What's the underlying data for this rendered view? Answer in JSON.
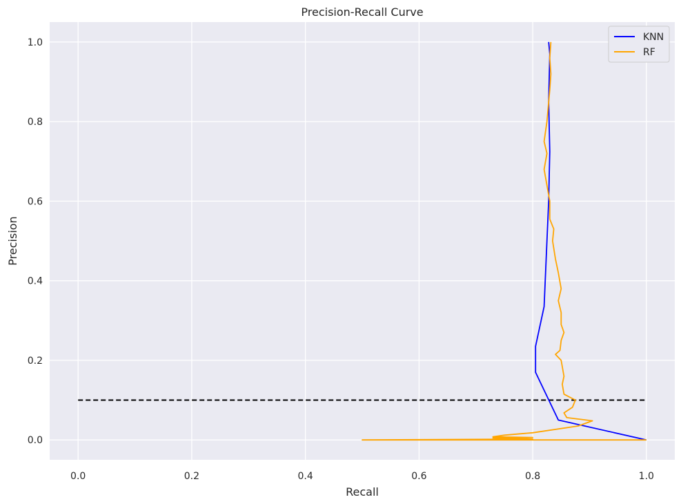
{
  "chart_data": {
    "type": "line",
    "title": "Precision-Recall Curve",
    "xlabel": "Recall",
    "ylabel": "Precision",
    "xlim": [
      -0.05,
      1.05
    ],
    "ylim": [
      -0.05,
      1.05
    ],
    "xticks": [
      0.0,
      0.2,
      0.4,
      0.6,
      0.8,
      1.0
    ],
    "yticks": [
      0.0,
      0.2,
      0.4,
      0.6,
      0.8,
      1.0
    ],
    "xtick_labels": [
      "0.0",
      "0.2",
      "0.4",
      "0.6",
      "0.8",
      "1.0"
    ],
    "ytick_labels": [
      "0.0",
      "0.2",
      "0.4",
      "0.6",
      "0.8",
      "1.0"
    ],
    "grid": true,
    "legend_position": "top-right",
    "baseline": {
      "y": 0.1,
      "x": [
        0.0,
        1.0
      ],
      "color": "#000000",
      "style": "dashed"
    },
    "series": [
      {
        "name": "KNN",
        "color": "#0000ff",
        "points": [
          [
            1.0,
            0.0
          ],
          [
            0.845,
            0.05
          ],
          [
            0.805,
            0.17
          ],
          [
            0.805,
            0.235
          ],
          [
            0.82,
            0.335
          ],
          [
            0.825,
            0.5
          ],
          [
            0.828,
            0.6
          ],
          [
            0.83,
            0.725
          ],
          [
            0.828,
            0.85
          ],
          [
            0.83,
            0.97
          ],
          [
            0.828,
            1.0
          ]
        ]
      },
      {
        "name": "RF",
        "color": "#ffa500",
        "points": [
          [
            1.0,
            0.0
          ],
          [
            0.5,
            0.0
          ],
          [
            0.8,
            0.002
          ],
          [
            0.73,
            0.005
          ],
          [
            0.8,
            0.006
          ],
          [
            0.73,
            0.008
          ],
          [
            0.75,
            0.012
          ],
          [
            0.8,
            0.018
          ],
          [
            0.88,
            0.035
          ],
          [
            0.905,
            0.048
          ],
          [
            0.86,
            0.056
          ],
          [
            0.855,
            0.068
          ],
          [
            0.87,
            0.082
          ],
          [
            0.875,
            0.1
          ],
          [
            0.855,
            0.115
          ],
          [
            0.852,
            0.14
          ],
          [
            0.855,
            0.16
          ],
          [
            0.85,
            0.2
          ],
          [
            0.84,
            0.215
          ],
          [
            0.848,
            0.225
          ],
          [
            0.85,
            0.25
          ],
          [
            0.855,
            0.27
          ],
          [
            0.85,
            0.29
          ],
          [
            0.85,
            0.32
          ],
          [
            0.845,
            0.35
          ],
          [
            0.85,
            0.38
          ],
          [
            0.845,
            0.42
          ],
          [
            0.84,
            0.455
          ],
          [
            0.835,
            0.5
          ],
          [
            0.837,
            0.53
          ],
          [
            0.83,
            0.555
          ],
          [
            0.83,
            0.6
          ],
          [
            0.82,
            0.68
          ],
          [
            0.825,
            0.72
          ],
          [
            0.82,
            0.75
          ],
          [
            0.825,
            0.8
          ],
          [
            0.83,
            0.88
          ],
          [
            0.832,
            0.92
          ],
          [
            0.83,
            0.96
          ],
          [
            0.832,
            1.0
          ]
        ]
      }
    ]
  }
}
